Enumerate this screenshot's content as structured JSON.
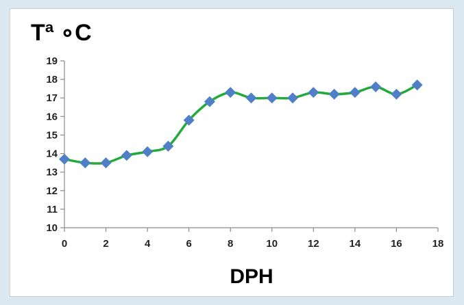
{
  "chart_data": {
    "type": "line",
    "title": "",
    "ylabel": "Tª ∘C",
    "xlabel": "DPH",
    "xlim": [
      0,
      18
    ],
    "ylim": [
      10,
      19
    ],
    "xticks": [
      0,
      2,
      4,
      6,
      8,
      10,
      12,
      14,
      16,
      18
    ],
    "yticks": [
      10,
      11,
      12,
      13,
      14,
      15,
      16,
      17,
      18,
      19
    ],
    "grid": false,
    "line_color": "#22aa3a",
    "marker_color": "#4f7fc6",
    "marker": "diamond",
    "series": [
      {
        "x": [
          0,
          1,
          2,
          3,
          4,
          5,
          6,
          7,
          8,
          9,
          10,
          11,
          12,
          13,
          14,
          15,
          16,
          17
        ],
        "y": [
          13.7,
          13.5,
          13.5,
          13.9,
          14.1,
          14.4,
          15.8,
          16.8,
          17.3,
          17.0,
          17.0,
          17.0,
          17.3,
          17.2,
          17.3,
          17.6,
          17.2,
          17.7
        ]
      }
    ]
  }
}
